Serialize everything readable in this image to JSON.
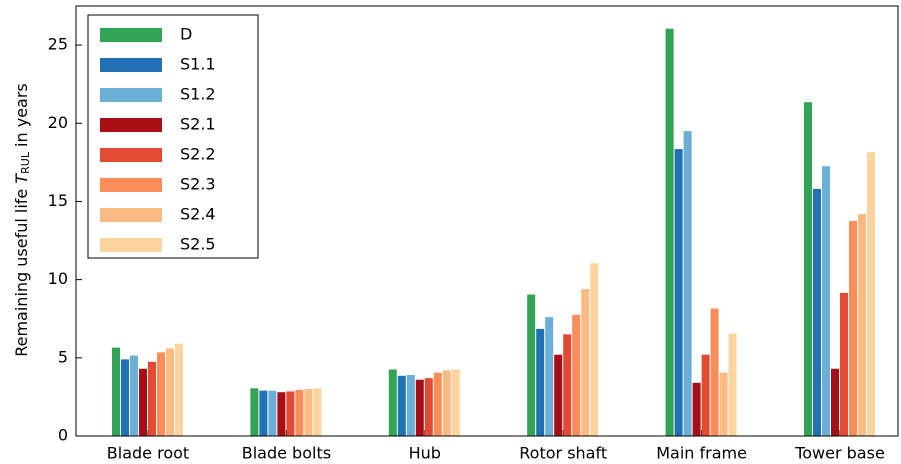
{
  "chart_data": {
    "type": "bar",
    "ylabel": "Remaining useful life",
    "ylabel_symbol": "T",
    "ylabel_sub": "RUL",
    "ylabel_suffix": "in years",
    "categories": [
      "Blade root",
      "Blade bolts",
      "Hub",
      "Rotor shaft",
      "Main frame",
      "Tower base"
    ],
    "series": [
      {
        "name": "D",
        "color": "#31a354",
        "values": [
          5.65,
          3.05,
          4.25,
          9.05,
          26.05,
          21.35
        ]
      },
      {
        "name": "S1.1",
        "color": "#2171b5",
        "values": [
          4.9,
          2.9,
          3.85,
          6.85,
          18.35,
          15.8
        ]
      },
      {
        "name": "S1.2",
        "color": "#6baed6",
        "values": [
          5.15,
          2.9,
          3.9,
          7.6,
          19.5,
          17.25
        ]
      },
      {
        "name": "S2.1",
        "color": "#a50f15",
        "values": [
          4.3,
          2.8,
          3.6,
          5.2,
          3.4,
          4.3
        ]
      },
      {
        "name": "S2.2",
        "color": "#e34a33",
        "values": [
          4.75,
          2.85,
          3.7,
          6.5,
          5.2,
          9.15
        ]
      },
      {
        "name": "S2.3",
        "color": "#fc8d59",
        "values": [
          5.35,
          2.95,
          4.05,
          7.75,
          8.15,
          13.75
        ]
      },
      {
        "name": "S2.4",
        "color": "#fdbb84",
        "values": [
          5.6,
          3.0,
          4.2,
          9.4,
          4.05,
          14.2
        ]
      },
      {
        "name": "S2.5",
        "color": "#fdd49e",
        "values": [
          5.9,
          3.05,
          4.25,
          11.05,
          6.55,
          18.15
        ]
      }
    ],
    "ylim": [
      0,
      27.5
    ],
    "yticks": [
      0,
      5,
      10,
      15,
      20,
      25
    ],
    "legend": "upper left"
  }
}
